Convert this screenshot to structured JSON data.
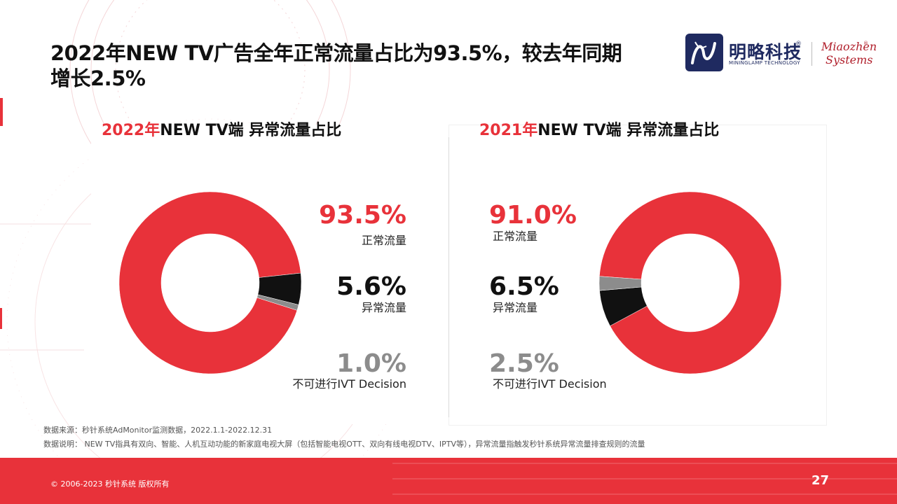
{
  "header": {
    "title_line1": "2022年NEW TV广告全年正常流量占比为93.5%，较去年同期",
    "title_line2": "增长2.5%"
  },
  "logo": {
    "mininglamp_cn": "明略科技",
    "mininglamp_en": "MININGLAMP TECHNOLOGY",
    "registered_mark": "®",
    "miaozhen_line1": "Miaozhen",
    "miaozhen_line2": "Systems"
  },
  "colors": {
    "normal": "#e8323a",
    "abnormal": "#111111",
    "ivt_undecided": "#8c8c8c",
    "accent": "#e8323a"
  },
  "chart_data": [
    {
      "type": "pie",
      "title_year": "2022年",
      "title_rest": "NEW TV端 异常流量占比",
      "slices": [
        {
          "label": "正常流量",
          "value": 93.5,
          "value_text": "93.5%"
        },
        {
          "label": "异常流量",
          "value": 5.6,
          "value_text": "5.6%"
        },
        {
          "label": "不可进行IVT Decision",
          "value": 1.0,
          "value_text": "1.0%"
        }
      ]
    },
    {
      "type": "pie",
      "title_year": "2021年",
      "title_rest": "NEW TV端 异常流量占比",
      "slices": [
        {
          "label": "正常流量",
          "value": 91.0,
          "value_text": "91.0%"
        },
        {
          "label": "异常流量",
          "value": 6.5,
          "value_text": "6.5%"
        },
        {
          "label": "不可进行IVT Decision",
          "value": 2.5,
          "value_text": "2.5%"
        }
      ]
    }
  ],
  "notes": {
    "source": "数据来源：秒针系统AdMonitor监测数据，2022.1.1-2022.12.31",
    "explanation": "数据说明： NEW TV指具有双向、智能、人机互动功能的新家庭电视大屏（包括智能电视OTT、双向有线电视DTV、IPTV等），异常流量指触发秒针系统异常流量排查规则的流量"
  },
  "footer": {
    "copyright": "© 2006-2023 秒针系统 版权所有",
    "page_number": "27"
  }
}
